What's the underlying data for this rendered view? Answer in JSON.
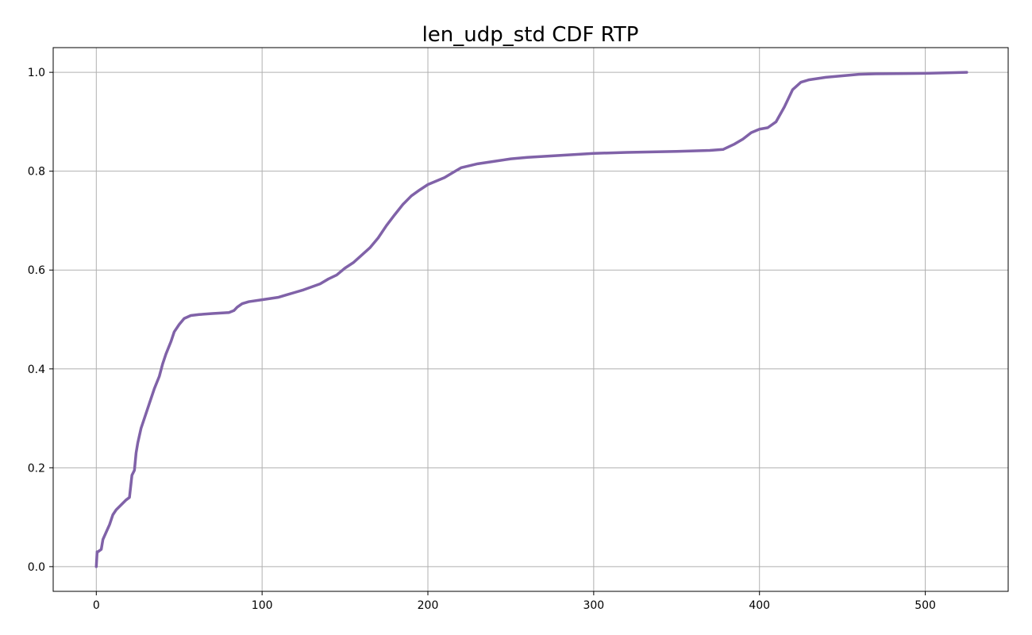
{
  "chart_data": {
    "type": "line",
    "title": "len_udp_std CDF RTP",
    "xlabel": "",
    "ylabel": "",
    "xlim": [
      -26,
      550
    ],
    "ylim": [
      -0.05,
      1.05
    ],
    "x_ticks": [
      0,
      100,
      200,
      300,
      400,
      500
    ],
    "x_tick_labels": [
      "0",
      "100",
      "200",
      "300",
      "400",
      "500"
    ],
    "y_ticks": [
      0.0,
      0.2,
      0.4,
      0.6,
      0.8,
      1.0
    ],
    "y_tick_labels": [
      "0.0",
      "0.2",
      "0.4",
      "0.6",
      "0.8",
      "1.0"
    ],
    "grid": true,
    "line_color": "#8062a8",
    "series": [
      {
        "name": "",
        "x": [
          0,
          0.5,
          1,
          3,
          4,
          6,
          8,
          9,
          10,
          12,
          15,
          18,
          20,
          21,
          21.5,
          23,
          24,
          25,
          27,
          29,
          32,
          35,
          38,
          40,
          42,
          45,
          47,
          50,
          53,
          57,
          62,
          70,
          80,
          83,
          85,
          88,
          92,
          100,
          110,
          115,
          120,
          125,
          130,
          135,
          140,
          145,
          150,
          155,
          160,
          165,
          170,
          175,
          180,
          185,
          190,
          195,
          200,
          205,
          210,
          215,
          220,
          230,
          240,
          250,
          260,
          280,
          300,
          320,
          350,
          370,
          378,
          385,
          390,
          395,
          400,
          405,
          410,
          415,
          420,
          425,
          430,
          440,
          450,
          460,
          470,
          500,
          525
        ],
        "y": [
          0.0,
          0.03,
          0.03,
          0.035,
          0.055,
          0.07,
          0.085,
          0.095,
          0.105,
          0.115,
          0.125,
          0.135,
          0.14,
          0.17,
          0.185,
          0.195,
          0.23,
          0.25,
          0.28,
          0.3,
          0.33,
          0.36,
          0.385,
          0.41,
          0.43,
          0.455,
          0.475,
          0.49,
          0.502,
          0.508,
          0.51,
          0.512,
          0.514,
          0.518,
          0.525,
          0.532,
          0.536,
          0.54,
          0.545,
          0.55,
          0.555,
          0.56,
          0.566,
          0.572,
          0.582,
          0.59,
          0.604,
          0.615,
          0.63,
          0.645,
          0.665,
          0.69,
          0.712,
          0.733,
          0.75,
          0.762,
          0.773,
          0.78,
          0.787,
          0.797,
          0.807,
          0.815,
          0.82,
          0.825,
          0.828,
          0.832,
          0.836,
          0.838,
          0.84,
          0.842,
          0.844,
          0.855,
          0.865,
          0.878,
          0.885,
          0.888,
          0.9,
          0.93,
          0.965,
          0.98,
          0.985,
          0.99,
          0.993,
          0.996,
          0.997,
          0.998,
          1.0
        ]
      }
    ]
  }
}
